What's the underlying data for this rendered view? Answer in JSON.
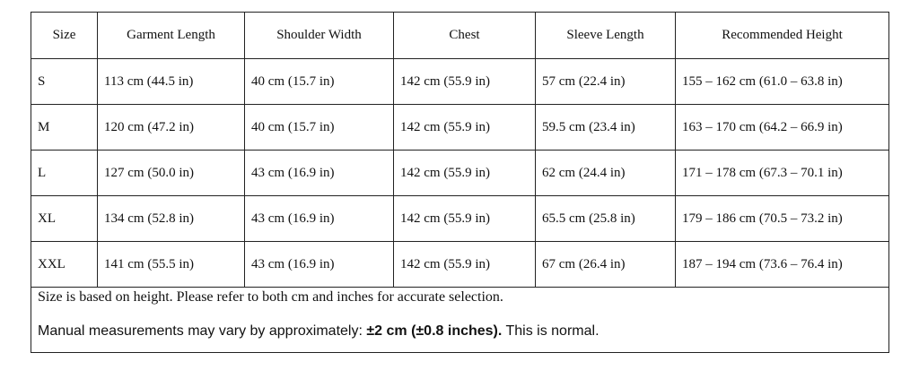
{
  "table": {
    "header": [
      "Size",
      "Garment Length",
      "Shoulder Width",
      "Chest",
      "Sleeve Length",
      "Recommended Height"
    ],
    "rows": [
      [
        "S",
        "113 cm (44.5 in)",
        "40 cm (15.7 in)",
        "142 cm (55.9 in)",
        "57 cm (22.4 in)",
        "155 – 162 cm (61.0 – 63.8 in)"
      ],
      [
        "M",
        "120 cm (47.2 in)",
        "40 cm (15.7 in)",
        "142 cm (55.9 in)",
        "59.5 cm (23.4 in)",
        "163 – 170 cm (64.2 – 66.9 in)"
      ],
      [
        "L",
        "127 cm (50.0 in)",
        "43 cm (16.9 in)",
        "142 cm (55.9 in)",
        "62 cm (24.4 in)",
        "171 – 178 cm (67.3 – 70.1 in)"
      ],
      [
        "XL",
        "134 cm (52.8 in)",
        "43 cm (16.9 in)",
        "142 cm (55.9 in)",
        "65.5 cm (25.8 in)",
        "179 – 186 cm (70.5 – 73.2 in)"
      ],
      [
        "XXL",
        "141 cm (55.5 in)",
        "43 cm (16.9 in)",
        "142 cm (55.9 in)",
        "67 cm (26.4 in)",
        "187 – 194 cm (73.6 – 76.4 in)"
      ]
    ],
    "note": "Size is based on height. Please refer to both cm and inches for accurate selection.",
    "disclaimer": {
      "before": "Manual measurements may vary by approximately:",
      "bold": "±2 cm (±0.8 inches).",
      "after": "This is normal."
    }
  }
}
